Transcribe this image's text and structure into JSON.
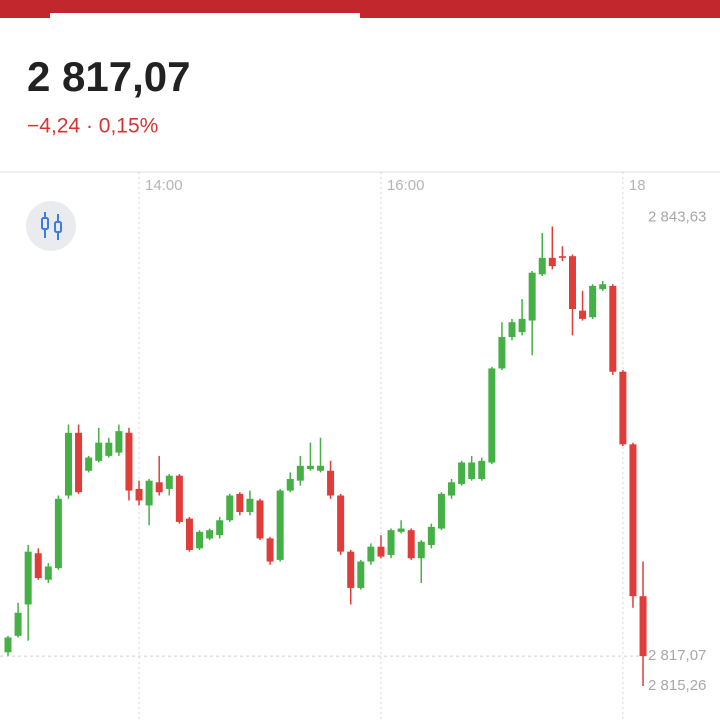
{
  "chart_data": {
    "type": "candlestick",
    "title": "2 817,07",
    "subtitle": "−4,24 · 0,15%",
    "categories": [
      null,
      null,
      null,
      null,
      null,
      null,
      null,
      null,
      null,
      null,
      null,
      null,
      null,
      "14:00",
      null,
      null,
      null,
      null,
      null,
      null,
      null,
      null,
      null,
      null,
      null,
      null,
      null,
      null,
      null,
      null,
      null,
      null,
      null,
      null,
      null,
      null,
      null,
      "16:00",
      null,
      null,
      null,
      null,
      null,
      null,
      null,
      null,
      null,
      null,
      null,
      null,
      null,
      null,
      null,
      null,
      null,
      null,
      null,
      null,
      null,
      null,
      null,
      "18",
      null,
      null
    ],
    "open": [
      2817.3,
      2818.3,
      2820.2,
      2823.3,
      2821.7,
      2822.4,
      2826.8,
      2830.6,
      2828.3,
      2828.9,
      2829.2,
      2829.4,
      2830.6,
      2827.2,
      2826.2,
      2827.6,
      2827.2,
      2828.0,
      2825.4,
      2823.6,
      2824.2,
      2824.4,
      2825.3,
      2826.9,
      2825.8,
      2826.5,
      2824.2,
      2822.9,
      2827.1,
      2827.7,
      2828.4,
      2828.3,
      2828.3,
      2826.8,
      2823.4,
      2821.2,
      2822.8,
      2823.7,
      2823.2,
      2824.6,
      2824.7,
      2823.0,
      2823.8,
      2824.8,
      2826.8,
      2827.5,
      2827.8,
      2827.8,
      2828.8,
      2834.5,
      2836.4,
      2836.7,
      2837.4,
      2840.2,
      2841.2,
      2841.3,
      2841.3,
      2838.0,
      2837.6,
      2839.3,
      2839.5,
      2834.3,
      2829.9,
      2820.7
    ],
    "high": [
      2818.3,
      2820.3,
      2823.8,
      2823.6,
      2822.7,
      2826.8,
      2831.1,
      2831.1,
      2829.2,
      2830.9,
      2830.3,
      2831.1,
      2830.9,
      2827.7,
      2827.8,
      2829.2,
      2828.1,
      2828.1,
      2825.5,
      2824.7,
      2824.8,
      2825.5,
      2826.9,
      2827.0,
      2827.1,
      2826.6,
      2824.3,
      2827.2,
      2828.2,
      2829.2,
      2830.0,
      2830.3,
      2828.9,
      2826.9,
      2823.5,
      2822.9,
      2823.9,
      2824.4,
      2824.8,
      2825.3,
      2824.8,
      2824.1,
      2825.1,
      2827.0,
      2827.8,
      2828.9,
      2829.2,
      2829.1,
      2834.6,
      2837.3,
      2837.5,
      2838.7,
      2840.4,
      2842.7,
      2843.1,
      2841.9,
      2841.4,
      2839.2,
      2839.6,
      2839.8,
      2839.6,
      2834.4,
      2830.0,
      2822.8
    ],
    "low": [
      2817.1,
      2818.2,
      2818.0,
      2821.7,
      2821.5,
      2822.3,
      2826.6,
      2826.9,
      2828.2,
      2828.8,
      2829.1,
      2829.2,
      2826.5,
      2826.2,
      2825.0,
      2826.8,
      2826.8,
      2825.1,
      2823.4,
      2823.5,
      2824.1,
      2824.2,
      2825.2,
      2825.6,
      2825.6,
      2824.1,
      2822.6,
      2822.8,
      2827.0,
      2827.4,
      2828.3,
      2828.2,
      2826.6,
      2823.2,
      2820.2,
      2821.1,
      2822.6,
      2823.0,
      2823.0,
      2824.5,
      2822.9,
      2821.5,
      2823.6,
      2824.7,
      2826.6,
      2827.4,
      2827.7,
      2827.7,
      2828.7,
      2834.4,
      2836.2,
      2836.5,
      2835.3,
      2840.1,
      2840.5,
      2841.0,
      2836.5,
      2837.4,
      2837.5,
      2839.2,
      2834.1,
      2829.8,
      2820.0,
      2815.26
    ],
    "close": [
      2818.2,
      2819.7,
      2823.4,
      2821.8,
      2822.5,
      2826.6,
      2830.6,
      2827.0,
      2829.1,
      2830.0,
      2830.0,
      2830.7,
      2827.1,
      2826.5,
      2827.7,
      2827.0,
      2828.0,
      2825.2,
      2823.5,
      2824.6,
      2824.7,
      2825.3,
      2826.8,
      2825.8,
      2826.6,
      2824.2,
      2822.8,
      2827.1,
      2827.8,
      2828.6,
      2828.6,
      2828.6,
      2826.8,
      2823.4,
      2821.2,
      2822.8,
      2823.7,
      2823.1,
      2824.7,
      2824.8,
      2823.0,
      2824.0,
      2824.9,
      2826.9,
      2827.6,
      2828.8,
      2828.8,
      2828.9,
      2834.5,
      2836.4,
      2837.3,
      2837.5,
      2840.3,
      2841.2,
      2840.7,
      2841.2,
      2838.1,
      2837.5,
      2839.5,
      2839.6,
      2834.3,
      2829.9,
      2820.7,
      2817.07
    ],
    "up_color": "#45b045",
    "down_color": "#e03c3a",
    "ylim": [
      2813.2,
      2846.4
    ],
    "yticks": [
      {
        "value": 2843.63,
        "label": "2 843,63"
      },
      {
        "value": 2817.07,
        "label": "2 817,07"
      },
      {
        "value": 2815.26,
        "label": "2 815,26"
      }
    ]
  }
}
